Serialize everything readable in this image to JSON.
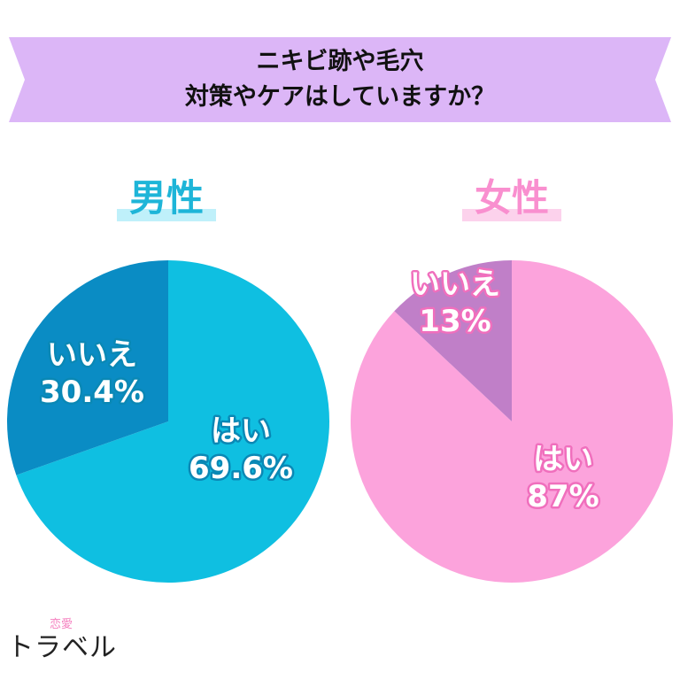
{
  "title": {
    "line1": "ニキビ跡や毛穴",
    "line2": "対策やケアはしていますか？"
  },
  "colors": {
    "banner": "#dcb6f7",
    "male_yes": "#0fbfe1",
    "male_no": "#0a8cc4",
    "male_label_stroke": "#0a88b5",
    "female_yes": "#fca3dc",
    "female_no": "#c07fc8",
    "female_label_stroke": "#f06fbd",
    "male_highlight": "#bff0fa",
    "female_highlight": "#fcd2ec"
  },
  "chart_data": [
    {
      "type": "pie",
      "title": "男性",
      "slices": [
        {
          "label": "はい",
          "value": 69.6,
          "display": "69.6%"
        },
        {
          "label": "いいえ",
          "value": 30.4,
          "display": "30.4%"
        }
      ]
    },
    {
      "type": "pie",
      "title": "女性",
      "slices": [
        {
          "label": "はい",
          "value": 87,
          "display": "87%"
        },
        {
          "label": "いいえ",
          "value": 13,
          "display": "13%"
        }
      ]
    }
  ],
  "logo": {
    "small": "恋愛",
    "main": "トラベル"
  }
}
